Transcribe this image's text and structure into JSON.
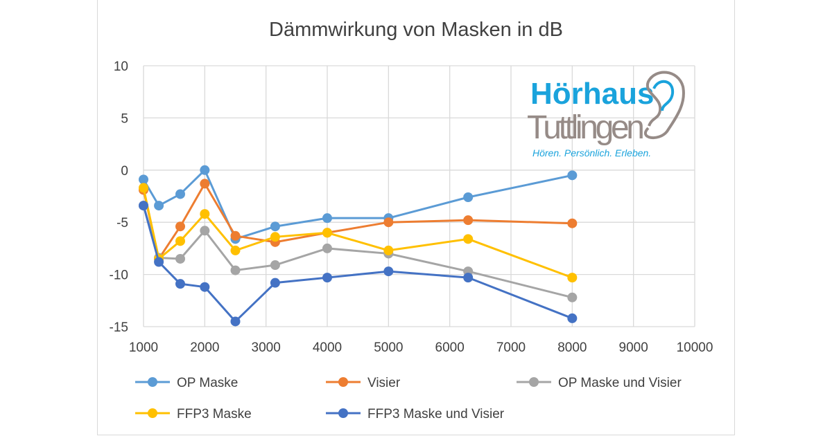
{
  "chart_data": {
    "type": "line",
    "title": "Dämmwirkung von Masken in dB",
    "xlabel": "",
    "ylabel": "",
    "xlim": [
      1000,
      10000
    ],
    "ylim": [
      -15,
      10
    ],
    "xticks": [
      1000,
      2000,
      3000,
      4000,
      5000,
      6000,
      7000,
      8000,
      9000,
      10000
    ],
    "yticks": [
      10,
      5,
      0,
      -5,
      -10,
      -15
    ],
    "grid": true,
    "legend_position": "bottom",
    "x": [
      1000,
      1250,
      1600,
      2000,
      2500,
      3150,
      4000,
      5000,
      6300,
      8000
    ],
    "series": [
      {
        "name": "OP Maske",
        "color": "#5b9bd5",
        "values": [
          -0.9,
          -3.4,
          -2.3,
          0.0,
          -6.6,
          -5.4,
          -4.6,
          -4.6,
          -2.6,
          -0.5
        ]
      },
      {
        "name": "Visier",
        "color": "#ed7d31",
        "values": [
          -1.9,
          -8.5,
          -5.4,
          -1.3,
          -6.3,
          -6.9,
          -6.0,
          -5.0,
          -4.8,
          -5.1
        ]
      },
      {
        "name": "OP Maske und Visier",
        "color": "#a5a5a5",
        "values": [
          -3.4,
          -8.4,
          -8.5,
          -5.8,
          -9.6,
          -9.1,
          -7.5,
          -8.0,
          -9.7,
          -12.2
        ]
      },
      {
        "name": "FFP3 Maske",
        "color": "#ffc000",
        "values": [
          -1.7,
          -8.5,
          -6.8,
          -4.2,
          -7.7,
          -6.4,
          -6.0,
          -7.7,
          -6.6,
          -10.3
        ]
      },
      {
        "name": "FFP3 Maske und Visier",
        "color": "#4472c4",
        "values": [
          -3.4,
          -8.8,
          -10.9,
          -11.2,
          -14.5,
          -10.8,
          -10.3,
          -9.7,
          -10.3,
          -14.2
        ]
      }
    ]
  },
  "logo": {
    "line1": "Hörhaus",
    "line2": "Tuttlingen",
    "tagline": "Hören. Persönlich. Erleben."
  }
}
